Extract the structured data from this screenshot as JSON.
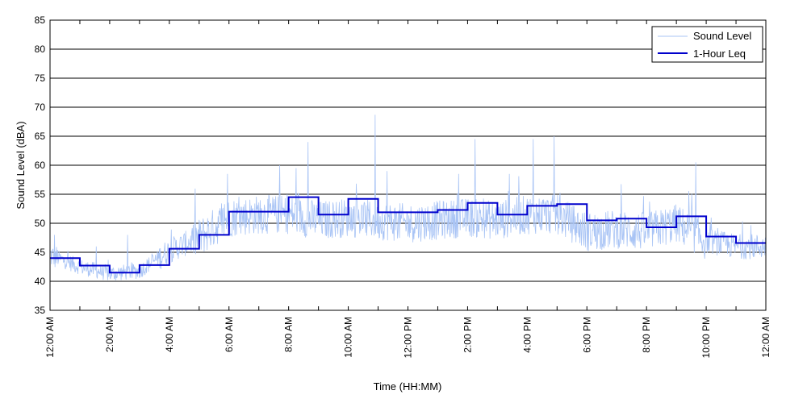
{
  "chart_data": {
    "type": "line",
    "xlabel": "Time (HH:MM)",
    "ylabel": "Sound Level (dBA)",
    "ylim": [
      35,
      85
    ],
    "yticks": [
      35,
      40,
      45,
      50,
      55,
      60,
      65,
      70,
      75,
      80,
      85
    ],
    "xlim_hours": [
      0,
      24
    ],
    "xtick_labels": [
      "12:00 AM",
      "2:00 AM",
      "4:00 AM",
      "6:00 AM",
      "8:00 AM",
      "10:00 AM",
      "12:00 PM",
      "2:00 PM",
      "4:00 PM",
      "6:00 PM",
      "8:00 PM",
      "10:00 PM",
      "12:00 AM"
    ],
    "grid": "horizontal",
    "legend_position": "top-right",
    "series": [
      {
        "name": "Sound Level",
        "color": "#a9c4f5",
        "style": "thin-noisy-line",
        "hourly_mean": [
          44.5,
          42.5,
          41.3,
          41.8,
          45.3,
          47.5,
          51.0,
          51.5,
          51.5,
          50.5,
          51.0,
          50.5,
          50.0,
          50.5,
          51.0,
          50.5,
          51.5,
          51.5,
          48.5,
          49.0,
          48.5,
          50.0,
          47.0,
          46.0
        ],
        "peaks": [
          {
            "hour": 0.15,
            "value": 48
          },
          {
            "hour": 1.55,
            "value": 46
          },
          {
            "hour": 2.6,
            "value": 48
          },
          {
            "hour": 5.95,
            "value": 58.5
          },
          {
            "hour": 7.7,
            "value": 60
          },
          {
            "hour": 8.25,
            "value": 59.5
          },
          {
            "hour": 8.65,
            "value": 64
          },
          {
            "hour": 10.9,
            "value": 68.7
          },
          {
            "hour": 11.3,
            "value": 59
          },
          {
            "hour": 13.7,
            "value": 58.5
          },
          {
            "hour": 14.25,
            "value": 64.5
          },
          {
            "hour": 15.4,
            "value": 58.5
          },
          {
            "hour": 16.2,
            "value": 64.5
          },
          {
            "hour": 16.9,
            "value": 65
          },
          {
            "hour": 21.65,
            "value": 60.5
          }
        ]
      },
      {
        "name": "1-Hour Leq",
        "color": "#0000cc",
        "style": "step",
        "values": [
          44.0,
          42.7,
          41.5,
          42.8,
          45.6,
          48.0,
          52.0,
          52.0,
          54.5,
          51.5,
          54.2,
          51.9,
          51.9,
          52.3,
          53.5,
          51.5,
          53.0,
          53.3,
          50.5,
          50.8,
          49.3,
          51.2,
          47.7,
          46.6
        ]
      }
    ]
  }
}
